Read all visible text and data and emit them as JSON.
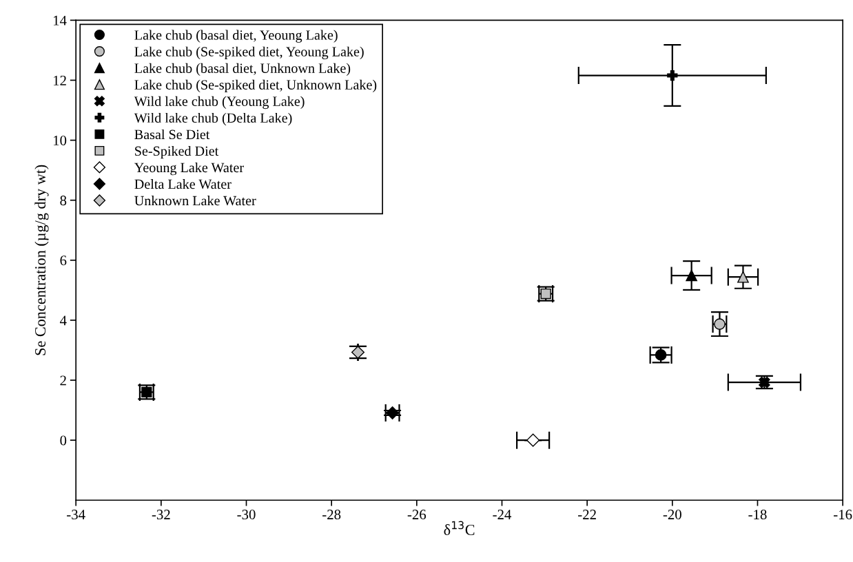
{
  "chart_data": {
    "type": "scatter",
    "xlabel": "δ$^{13}$C",
    "ylabel": "Se Concentration (µg/g dry wt)",
    "xlim": [
      -34,
      -16
    ],
    "xticks": [
      -34,
      -32,
      -30,
      -28,
      -26,
      -24,
      -22,
      -20,
      -18,
      -16
    ],
    "ylim": [
      -2,
      14
    ],
    "yticks": [
      0,
      2,
      4,
      6,
      8,
      10,
      12,
      14
    ],
    "grid": false,
    "legend": "top left",
    "series": [
      {
        "name": "Lake chub (basal diet, Yeoung Lake)",
        "color": "#000000",
        "marker": "circle",
        "x": [
          -20.27
        ],
        "values": [
          2.84
        ],
        "errors": [
          0.25
        ],
        "xerrors": [
          0.25
        ]
      },
      {
        "name": "Lake chub (Se-spiked diet, Yeoung Lake)",
        "color": "#c0c0c0",
        "marker": "circle",
        "x": [
          -18.89
        ],
        "values": [
          3.87
        ],
        "errors": [
          0.4
        ],
        "xerrors": [
          0.16
        ]
      },
      {
        "name": "Lake chub (basal diet, Unknown Lake)",
        "color": "#000000",
        "marker": "triangle",
        "x": [
          -19.55
        ],
        "values": [
          5.49
        ],
        "errors": [
          0.48
        ],
        "xerrors": [
          0.47
        ]
      },
      {
        "name": "Lake chub (Se-spiked diet, Unknown Lake)",
        "color": "#c0c0c0",
        "marker": "triangle",
        "x": [
          -18.34
        ],
        "values": [
          5.44
        ],
        "errors": [
          0.38
        ],
        "xerrors": [
          0.35
        ]
      },
      {
        "name": "Wild lake chub (Yeoung Lake)",
        "color": "#000000",
        "marker": "cross",
        "x": [
          -17.84
        ],
        "values": [
          1.93
        ],
        "errors": [
          0.21
        ],
        "xerrors": [
          0.85
        ]
      },
      {
        "name": "Wild lake chub (Delta Lake)",
        "color": "#000000",
        "marker": "plus",
        "x": [
          -20.0
        ],
        "values": [
          12.16
        ],
        "errors": [
          1.02
        ],
        "xerrors": [
          2.2
        ]
      },
      {
        "name": "Basal Se Diet",
        "color": "#000000",
        "marker": "square",
        "x": [
          -32.34
        ],
        "values": [
          1.6
        ],
        "errors": [
          0.23
        ],
        "xerrors": [
          0.16
        ]
      },
      {
        "name": "Se-Spiked Diet",
        "color": "#c0c0c0",
        "marker": "square",
        "x": [
          -22.97
        ],
        "values": [
          4.88
        ],
        "errors": [
          0.23
        ],
        "xerrors": [
          0.16
        ]
      },
      {
        "name": "Yeoung Lake Water",
        "color": "#ffffff",
        "marker": "diamond",
        "x": [
          -23.27
        ],
        "values": [
          0.0
        ],
        "errors": [
          null
        ],
        "xerrors": [
          0.38
        ]
      },
      {
        "name": "Delta Lake Water",
        "color": "#000000",
        "marker": "diamond",
        "x": [
          -26.57
        ],
        "values": [
          0.91
        ],
        "errors": [
          0.08
        ],
        "xerrors": [
          0.16
        ]
      },
      {
        "name": "Unknown Lake Water",
        "color": "#c0c0c0",
        "marker": "diamond",
        "x": [
          -27.38
        ],
        "values": [
          2.93
        ],
        "errors": [
          0.2
        ],
        "xerrors": [
          null
        ]
      }
    ]
  }
}
